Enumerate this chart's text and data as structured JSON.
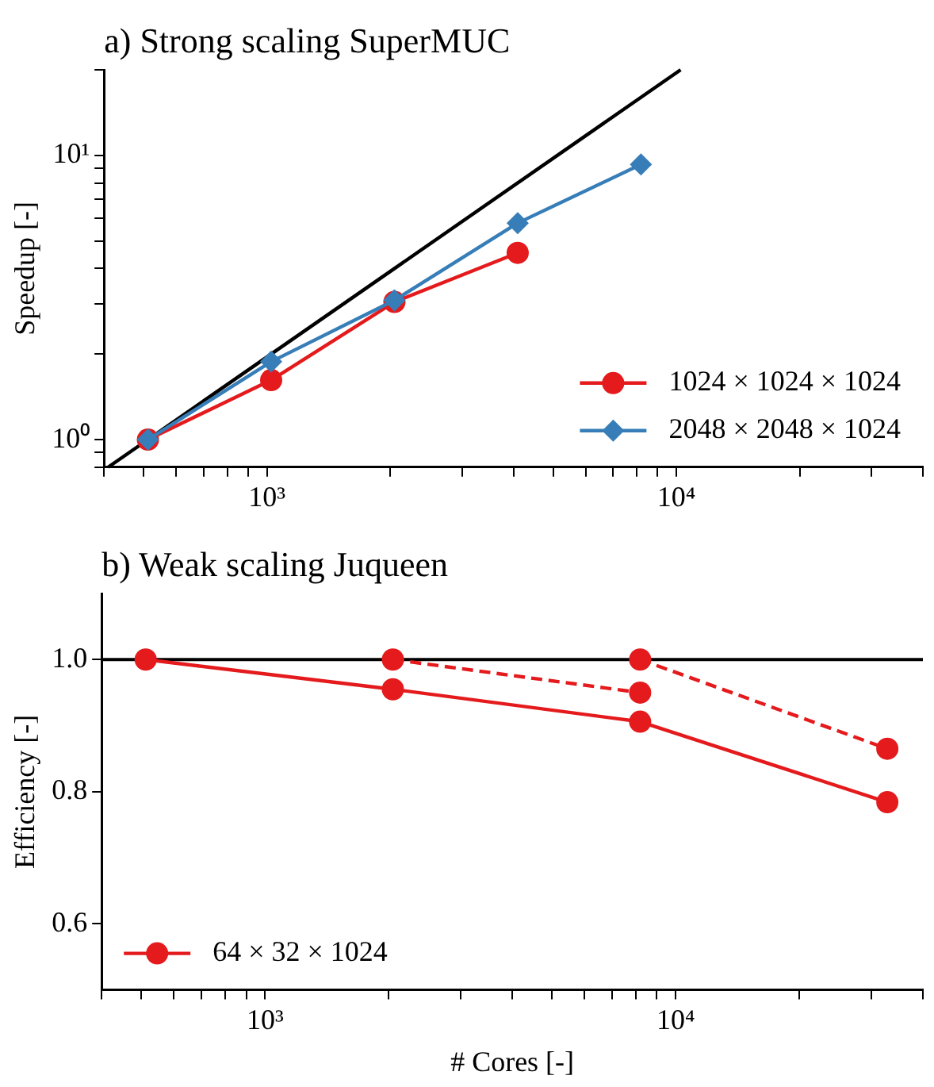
{
  "chart_data": [
    {
      "type": "line",
      "title": "a) Strong scaling SuperMUC",
      "ylabel": "Speedup [-]",
      "log": "xy",
      "xlim": [
        400,
        40000
      ],
      "ylim": [
        0.8,
        20
      ],
      "xticks": [
        {
          "value": 400,
          "label": null
        },
        {
          "value": 500,
          "label": null
        },
        {
          "value": 600,
          "label": null
        },
        {
          "value": 700,
          "label": null
        },
        {
          "value": 800,
          "label": null
        },
        {
          "value": 900,
          "label": null
        },
        {
          "value": 1000,
          "label": "10³"
        },
        {
          "value": 2000,
          "label": null
        },
        {
          "value": 3000,
          "label": null
        },
        {
          "value": 4000,
          "label": null
        },
        {
          "value": 5000,
          "label": null
        },
        {
          "value": 6000,
          "label": null
        },
        {
          "value": 7000,
          "label": null
        },
        {
          "value": 8000,
          "label": null
        },
        {
          "value": 9000,
          "label": null
        },
        {
          "value": 10000,
          "label": "10⁴"
        },
        {
          "value": 20000,
          "label": null
        },
        {
          "value": 30000,
          "label": null
        },
        {
          "value": 40000,
          "label": null
        }
      ],
      "yticks": [
        {
          "value": 0.8,
          "label": null
        },
        {
          "value": 0.9,
          "label": null
        },
        {
          "value": 1,
          "label": "10⁰"
        },
        {
          "value": 2,
          "label": null
        },
        {
          "value": 3,
          "label": null
        },
        {
          "value": 4,
          "label": null
        },
        {
          "value": 5,
          "label": null
        },
        {
          "value": 6,
          "label": null
        },
        {
          "value": 7,
          "label": null
        },
        {
          "value": 8,
          "label": null
        },
        {
          "value": 9,
          "label": null
        },
        {
          "value": 10,
          "label": "10¹"
        },
        {
          "value": 20,
          "label": null
        }
      ],
      "legend": "bottom right",
      "grid": false,
      "series": [
        {
          "x": [
            409.6,
            10240
          ],
          "values": [
            0.8,
            20
          ],
          "color": "#000000",
          "marker": "none",
          "line_style": "solid"
        },
        {
          "name": "1024 × 1024 × 1024",
          "x": [
            512,
            1024,
            2048,
            4096
          ],
          "values": [
            1,
            1.62,
            3.05,
            4.54
          ],
          "color": "#e41a1c",
          "marker": "circle",
          "line_style": "solid"
        },
        {
          "name": "2048 × 2048 × 1024",
          "x": [
            512,
            1024,
            2048,
            4096,
            8192
          ],
          "values": [
            1,
            1.88,
            3.09,
            5.78,
            9.29
          ],
          "color": "#377eb8",
          "marker": "diamond",
          "line_style": "solid"
        }
      ]
    },
    {
      "type": "line",
      "title": "b) Weak scaling Juqueen",
      "xlabel": "# Cores [-]",
      "ylabel": "Efficiency [-]",
      "log": "x",
      "xlim": [
        400,
        40000
      ],
      "ylim": [
        0.5,
        1.1
      ],
      "xticks": [
        {
          "value": 400,
          "label": null
        },
        {
          "value": 500,
          "label": null
        },
        {
          "value": 600,
          "label": null
        },
        {
          "value": 700,
          "label": null
        },
        {
          "value": 800,
          "label": null
        },
        {
          "value": 900,
          "label": null
        },
        {
          "value": 1000,
          "label": "10³"
        },
        {
          "value": 2000,
          "label": null
        },
        {
          "value": 3000,
          "label": null
        },
        {
          "value": 4000,
          "label": null
        },
        {
          "value": 5000,
          "label": null
        },
        {
          "value": 6000,
          "label": null
        },
        {
          "value": 7000,
          "label": null
        },
        {
          "value": 8000,
          "label": null
        },
        {
          "value": 9000,
          "label": null
        },
        {
          "value": 10000,
          "label": "10⁴"
        },
        {
          "value": 20000,
          "label": null
        },
        {
          "value": 30000,
          "label": null
        },
        {
          "value": 40000,
          "label": null
        }
      ],
      "yticks": [
        {
          "value": 0.6,
          "label": "0.6"
        },
        {
          "value": 0.8,
          "label": "0.8"
        },
        {
          "value": 1.0,
          "label": "1.0"
        }
      ],
      "legend": "bottom left",
      "grid": false,
      "ref_lines": [
        {
          "axis": "y",
          "value": 1,
          "color": "#000000"
        }
      ],
      "series": [
        {
          "name": "64 × 32 × 1024",
          "x": [
            512,
            2048,
            8192,
            32768
          ],
          "values": [
            1,
            0.955,
            0.906,
            0.784
          ],
          "color": "#e41a1c",
          "marker": "circle",
          "line_style": "solid"
        },
        {
          "x": [
            2048,
            8192
          ],
          "values": [
            1,
            0.95
          ],
          "color": "#e41a1c",
          "marker": "circle",
          "line_style": "dashed"
        },
        {
          "x": [
            8192,
            32768
          ],
          "values": [
            1,
            0.865
          ],
          "color": "#e41a1c",
          "marker": "circle",
          "line_style": "dashed"
        }
      ]
    }
  ]
}
